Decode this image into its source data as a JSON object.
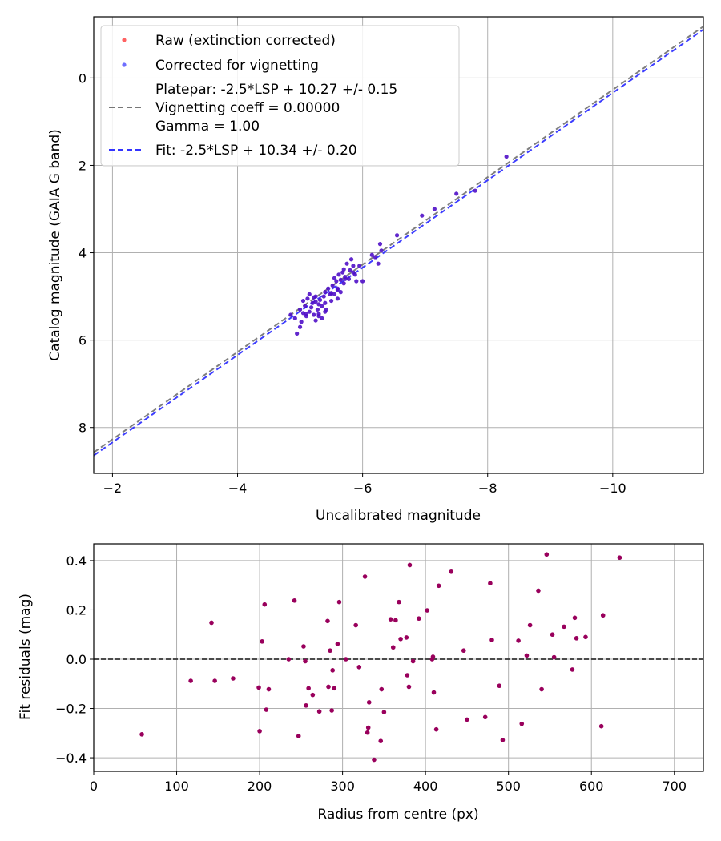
{
  "chart_data": [
    {
      "type": "scatter",
      "xlabel": "Uncalibrated magnitude",
      "ylabel": "Catalog magnitude (GAIA G band)",
      "xlim": [
        -1.7,
        -11.45
      ],
      "ylim": [
        9.05,
        -1.4
      ],
      "x_inverted": true,
      "y_inverted": true,
      "grid": true,
      "legend_position": "top-left",
      "xticks": [
        -2,
        -4,
        -6,
        -8,
        -10
      ],
      "xtick_labels": [
        "−2",
        "−4",
        "−6",
        "−8",
        "−10"
      ],
      "yticks": [
        0,
        2,
        4,
        6,
        8
      ],
      "ytick_labels": [
        "0",
        "2",
        "4",
        "6",
        "8"
      ],
      "legend": [
        {
          "label": "Raw (extinction corrected)",
          "kind": "marker",
          "color": "#ff3b3b"
        },
        {
          "label": "Corrected for vignetting",
          "kind": "marker",
          "color": "#4a4aff"
        },
        {
          "label": "Platepar: -2.5*LSP + 10.27 +/- 0.15",
          "label2": "Vignetting coeff = 0.00000",
          "label3": "Gamma = 1.00",
          "kind": "line",
          "color": "#777777"
        },
        {
          "label": "Fit: -2.5*LSP + 10.34 +/- 0.20",
          "kind": "line",
          "color": "#3333ff"
        }
      ],
      "series": [
        {
          "name": "Platepar",
          "kind": "line",
          "slope": 1.0,
          "intercept": 10.27,
          "color": "#777777"
        },
        {
          "name": "Fit",
          "kind": "line",
          "slope": 1.0,
          "intercept": 10.34,
          "color": "#3333ff"
        },
        {
          "name": "Points",
          "kind": "scatter",
          "color": "#5010c8",
          "x": [
            -4.85,
            -4.92,
            -4.95,
            -5.0,
            -5.02,
            -5.05,
            -5.05,
            -5.08,
            -5.1,
            -5.12,
            -5.15,
            -5.15,
            -5.18,
            -5.2,
            -5.22,
            -5.22,
            -5.25,
            -5.25,
            -5.28,
            -5.3,
            -5.3,
            -5.32,
            -5.35,
            -5.35,
            -5.38,
            -5.4,
            -5.4,
            -5.42,
            -5.45,
            -5.48,
            -5.5,
            -5.52,
            -5.55,
            -5.55,
            -5.58,
            -5.6,
            -5.6,
            -5.62,
            -5.65,
            -5.65,
            -5.68,
            -5.7,
            -5.7,
            -5.72,
            -5.75,
            -5.78,
            -5.8,
            -5.82,
            -5.85,
            -5.88,
            -5.9,
            -5.95,
            -6.0,
            -5.0,
            -5.3,
            -5.6,
            -5.4,
            -5.25,
            -5.1,
            -5.85,
            -5.72,
            -5.5,
            -6.15,
            -6.2,
            -6.25,
            -6.28,
            -6.3,
            -6.55,
            -6.95,
            -7.15,
            -7.5,
            -7.8,
            -8.3
          ],
          "y": [
            5.42,
            5.5,
            5.85,
            5.3,
            5.58,
            5.1,
            5.38,
            5.22,
            5.45,
            5.05,
            4.95,
            5.35,
            5.25,
            5.15,
            5.42,
            5.02,
            5.12,
            5.55,
            5.3,
            5.18,
            5.4,
            5.08,
            5.22,
            5.5,
            5.0,
            4.9,
            5.15,
            5.3,
            4.82,
            4.95,
            5.1,
            4.75,
            4.58,
            4.95,
            4.65,
            4.82,
            5.05,
            4.5,
            4.62,
            4.9,
            4.45,
            4.38,
            4.7,
            4.55,
            4.25,
            4.6,
            4.4,
            4.15,
            4.3,
            4.5,
            4.65,
            4.3,
            4.65,
            5.7,
            5.45,
            4.85,
            5.35,
            5.0,
            5.4,
            4.45,
            4.6,
            4.92,
            4.05,
            4.1,
            4.25,
            3.8,
            3.95,
            3.6,
            3.15,
            3.0,
            2.65,
            2.58,
            1.8
          ]
        }
      ]
    },
    {
      "type": "scatter",
      "xlabel": "Radius from centre (px)",
      "ylabel": "Fit residuals (mag)",
      "xlim": [
        0,
        735
      ],
      "ylim": [
        -0.455,
        0.468
      ],
      "grid": true,
      "xticks": [
        0,
        100,
        200,
        300,
        400,
        500,
        600,
        700
      ],
      "xtick_labels": [
        "0",
        "100",
        "200",
        "300",
        "400",
        "500",
        "600",
        "700"
      ],
      "yticks": [
        -0.4,
        -0.2,
        0.0,
        0.2,
        0.4
      ],
      "ytick_labels": [
        "−0.4",
        "−0.2",
        "0.0",
        "0.2",
        "0.4"
      ],
      "reference_line": 0.0,
      "series": [
        {
          "name": "Residuals",
          "kind": "scatter",
          "color": "#99005c",
          "x": [
            58,
            117,
            142,
            146,
            168,
            199,
            200,
            203,
            206,
            208,
            211,
            235,
            242,
            247,
            253,
            255,
            256,
            259,
            264,
            272,
            282,
            283,
            285,
            287,
            288,
            290,
            294,
            296,
            304,
            316,
            320,
            327,
            330,
            331,
            332,
            338,
            346,
            347,
            350,
            358,
            361,
            364,
            368,
            370,
            377,
            378,
            380,
            381,
            385,
            392,
            402,
            408,
            409,
            410,
            413,
            416,
            431,
            446,
            450,
            472,
            478,
            480,
            489,
            493,
            512,
            516,
            522,
            526,
            536,
            540,
            546,
            553,
            555,
            567,
            577,
            580,
            582,
            593,
            612,
            614,
            634
          ],
          "y": [
            -0.305,
            -0.088,
            0.148,
            -0.088,
            -0.078,
            -0.115,
            -0.292,
            0.072,
            0.222,
            -0.205,
            -0.122,
            0.0,
            0.238,
            -0.312,
            0.052,
            -0.008,
            -0.188,
            -0.118,
            -0.145,
            -0.212,
            0.155,
            -0.112,
            0.035,
            -0.208,
            -0.045,
            -0.118,
            0.062,
            0.232,
            0.0,
            0.138,
            -0.032,
            0.335,
            -0.298,
            -0.278,
            -0.175,
            -0.408,
            -0.332,
            -0.122,
            -0.215,
            0.162,
            0.048,
            0.158,
            0.232,
            0.082,
            0.088,
            -0.065,
            -0.112,
            0.382,
            -0.008,
            0.165,
            0.198,
            0.0,
            0.01,
            -0.135,
            -0.285,
            0.298,
            0.355,
            0.035,
            -0.245,
            -0.235,
            0.308,
            0.078,
            -0.108,
            -0.328,
            0.075,
            -0.262,
            0.015,
            0.138,
            0.278,
            -0.122,
            0.425,
            0.1,
            0.008,
            0.132,
            -0.042,
            0.168,
            0.085,
            0.09,
            -0.272,
            0.178,
            0.412
          ]
        }
      ]
    }
  ]
}
